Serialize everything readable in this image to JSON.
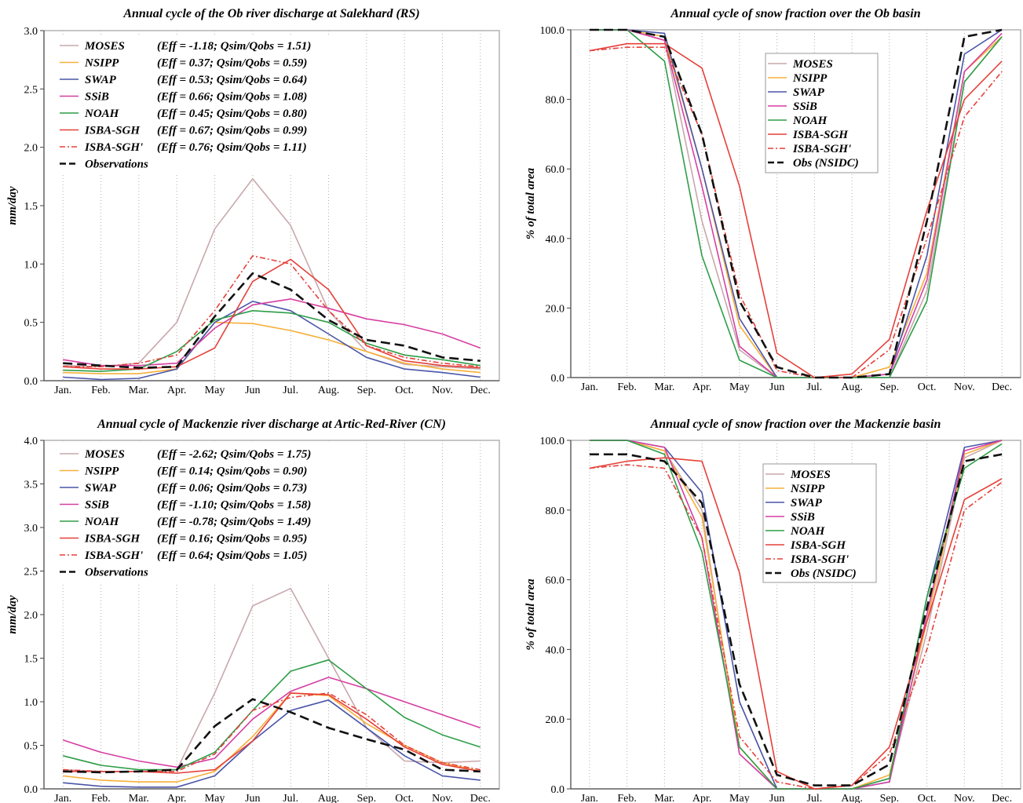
{
  "months": [
    "Jan.",
    "Feb.",
    "Mar.",
    "Apr.",
    "May",
    "Jun",
    "Jul.",
    "Aug.",
    "Sep.",
    "Oct.",
    "Nov.",
    "Dec."
  ],
  "series_styles": {
    "MOSES": {
      "color": "#c8a8ac",
      "dash": ""
    },
    "NSIPP": {
      "color": "#f6b03a",
      "dash": ""
    },
    "SWAP": {
      "color": "#4a55a8",
      "dash": ""
    },
    "SSiB": {
      "color": "#d63fa3",
      "dash": ""
    },
    "NOAH": {
      "color": "#2e9e48",
      "dash": ""
    },
    "ISBA-SGH": {
      "color": "#e6403a",
      "dash": ""
    },
    "ISBA-SGH'": {
      "color": "#e6403a",
      "dash": "7 3 2 3"
    },
    "Observations": {
      "color": "#111111",
      "dash": "12 6"
    },
    "Obs (NSIDC)": {
      "color": "#111111",
      "dash": "12 6"
    }
  },
  "chart_data": [
    {
      "type": "line",
      "title": "Annual cycle of the Ob river discharge at Salekhard (RS)",
      "ylabel": "mm/day",
      "xlabel": "",
      "ylim": [
        0,
        3.0
      ],
      "yticks": [
        "0.0",
        "0.5",
        "1.0",
        "1.5",
        "2.0",
        "2.5",
        "3.0"
      ],
      "grid": "vertical dotted",
      "legend_position": "top-left",
      "categories": [
        "Jan.",
        "Feb.",
        "Mar.",
        "Apr.",
        "May",
        "Jun",
        "Jul.",
        "Aug.",
        "Sep.",
        "Oct.",
        "Nov.",
        "Dec."
      ],
      "series": [
        {
          "name": "MOSES",
          "stat": "(Eff = -1.18; Qsim/Qobs = 1.51)",
          "values": [
            0.13,
            0.12,
            0.15,
            0.5,
            1.3,
            1.73,
            1.33,
            0.6,
            0.25,
            0.14,
            0.12,
            0.1
          ]
        },
        {
          "name": "NSIPP",
          "stat": "(Eff = 0.37; Qsim/Qobs = 0.59)",
          "values": [
            0.07,
            0.06,
            0.06,
            0.1,
            0.5,
            0.49,
            0.43,
            0.35,
            0.25,
            0.15,
            0.1,
            0.07
          ]
        },
        {
          "name": "SWAP",
          "stat": "(Eff = 0.53; Qsim/Qobs = 0.64)",
          "values": [
            0.03,
            0.01,
            0.02,
            0.1,
            0.5,
            0.68,
            0.6,
            0.4,
            0.2,
            0.1,
            0.07,
            0.03
          ]
        },
        {
          "name": "SSiB",
          "stat": "(Eff = 0.66; Qsim/Qobs = 1.08)",
          "values": [
            0.18,
            0.13,
            0.13,
            0.15,
            0.45,
            0.65,
            0.7,
            0.62,
            0.53,
            0.48,
            0.4,
            0.28
          ]
        },
        {
          "name": "NOAH",
          "stat": "(Eff = 0.45; Qsim/Qobs = 0.80)",
          "values": [
            0.09,
            0.08,
            0.1,
            0.25,
            0.52,
            0.6,
            0.58,
            0.5,
            0.32,
            0.22,
            0.18,
            0.13
          ]
        },
        {
          "name": "ISBA-SGH",
          "stat": "(Eff = 0.67; Qsim/Qobs = 0.99)",
          "values": [
            0.12,
            0.1,
            0.1,
            0.12,
            0.28,
            0.85,
            1.04,
            0.78,
            0.3,
            0.17,
            0.13,
            0.11
          ]
        },
        {
          "name": "ISBA-SGH'",
          "stat": "(Eff = 0.76; Qsim/Qobs = 1.11)",
          "values": [
            0.12,
            0.12,
            0.15,
            0.22,
            0.6,
            1.07,
            1.0,
            0.6,
            0.3,
            0.2,
            0.15,
            0.12
          ]
        },
        {
          "name": "Observations",
          "stat": "",
          "values": [
            0.15,
            0.13,
            0.11,
            0.12,
            0.55,
            0.92,
            0.78,
            0.52,
            0.35,
            0.3,
            0.2,
            0.17
          ]
        }
      ]
    },
    {
      "type": "line",
      "title": "Annual cycle of snow fraction over the Ob basin",
      "ylabel": "% of total area",
      "xlabel": "",
      "ylim": [
        0,
        100
      ],
      "yticks": [
        "0.0",
        "20.0",
        "40.0",
        "60.0",
        "80.0",
        "100.0"
      ],
      "grid": "vertical dotted",
      "legend_position": "upper-center",
      "categories": [
        "Jan.",
        "Feb.",
        "Mar.",
        "Apr.",
        "May",
        "Jun",
        "Jul.",
        "Aug.",
        "Sep.",
        "Oct.",
        "Nov.",
        "Dec."
      ],
      "series": [
        {
          "name": "MOSES",
          "stat": "",
          "values": [
            100,
            100,
            97,
            45,
            8,
            0,
            0,
            0,
            0,
            25,
            85,
            98
          ]
        },
        {
          "name": "NSIPP",
          "stat": "",
          "values": [
            100,
            100,
            98,
            60,
            15,
            0,
            0,
            0,
            3,
            30,
            88,
            98
          ]
        },
        {
          "name": "SWAP",
          "stat": "",
          "values": [
            100,
            100,
            99,
            60,
            17,
            0,
            0,
            0,
            1,
            35,
            93,
            100
          ]
        },
        {
          "name": "SSiB",
          "stat": "",
          "values": [
            100,
            100,
            97,
            55,
            9,
            0,
            0,
            0,
            1,
            28,
            88,
            99
          ]
        },
        {
          "name": "NOAH",
          "stat": "",
          "values": [
            100,
            100,
            91,
            35,
            5,
            0,
            0,
            0,
            0,
            22,
            85,
            98
          ]
        },
        {
          "name": "ISBA-SGH",
          "stat": "",
          "values": [
            94,
            96,
            96,
            89,
            55,
            7,
            0,
            1,
            11,
            48,
            80,
            91
          ]
        },
        {
          "name": "ISBA-SGH'",
          "stat": "",
          "values": [
            94,
            95,
            95,
            70,
            24,
            2,
            0,
            0,
            8,
            40,
            75,
            88
          ]
        },
        {
          "name": "Obs (NSIDC)",
          "stat": "",
          "values": [
            100,
            100,
            98,
            70,
            22,
            3,
            0,
            0,
            1,
            45,
            98,
            100
          ]
        }
      ]
    },
    {
      "type": "line",
      "title": "Annual cycle of Mackenzie river discharge at Artic-Red-River (CN)",
      "ylabel": "mm/day",
      "xlabel": "",
      "ylim": [
        0,
        4.0
      ],
      "yticks": [
        "0.0",
        "0.5",
        "1.0",
        "1.5",
        "2.0",
        "2.5",
        "3.0",
        "3.5",
        "4.0"
      ],
      "grid": "vertical dotted",
      "legend_position": "top-left",
      "categories": [
        "Jan.",
        "Feb.",
        "Mar.",
        "Apr.",
        "May",
        "Jun",
        "Jul.",
        "Aug.",
        "Sep.",
        "Oct.",
        "Nov.",
        "Dec."
      ],
      "series": [
        {
          "name": "MOSES",
          "stat": "(Eff = -2.62; Qsim/Qobs = 1.75)",
          "values": [
            0.22,
            0.2,
            0.2,
            0.22,
            1.1,
            2.1,
            2.3,
            1.5,
            0.7,
            0.32,
            0.3,
            0.32
          ]
        },
        {
          "name": "NSIPP",
          "stat": "(Eff = 0.14; Qsim/Qobs = 0.90)",
          "values": [
            0.15,
            0.1,
            0.08,
            0.08,
            0.2,
            0.6,
            1.1,
            1.07,
            0.75,
            0.5,
            0.3,
            0.2
          ]
        },
        {
          "name": "SWAP",
          "stat": "(Eff = 0.06; Qsim/Qobs = 0.73)",
          "values": [
            0.07,
            0.03,
            0.02,
            0.02,
            0.15,
            0.55,
            0.9,
            1.02,
            0.7,
            0.38,
            0.15,
            0.1
          ]
        },
        {
          "name": "SSiB",
          "stat": "(Eff = -1.10; Qsim/Qobs = 1.58)",
          "values": [
            0.56,
            0.42,
            0.32,
            0.25,
            0.35,
            0.8,
            1.12,
            1.28,
            1.15,
            1.0,
            0.85,
            0.7
          ]
        },
        {
          "name": "NOAH",
          "stat": "(Eff = -0.78; Qsim/Qobs = 1.49)",
          "values": [
            0.38,
            0.27,
            0.22,
            0.22,
            0.42,
            0.9,
            1.35,
            1.48,
            1.15,
            0.82,
            0.62,
            0.48
          ]
        },
        {
          "name": "ISBA-SGH",
          "stat": "(Eff = 0.16; Qsim/Qobs = 0.95)",
          "values": [
            0.2,
            0.2,
            0.2,
            0.18,
            0.22,
            0.55,
            1.1,
            1.08,
            0.8,
            0.48,
            0.28,
            0.2
          ]
        },
        {
          "name": "ISBA-SGH'",
          "stat": "(Eff = 0.64; Qsim/Qobs = 1.05)",
          "values": [
            0.22,
            0.2,
            0.2,
            0.2,
            0.4,
            0.9,
            1.05,
            1.1,
            0.85,
            0.5,
            0.3,
            0.22
          ]
        },
        {
          "name": "Observations",
          "stat": "",
          "values": [
            0.2,
            0.19,
            0.2,
            0.22,
            0.72,
            1.03,
            0.88,
            0.7,
            0.57,
            0.45,
            0.22,
            0.2
          ]
        }
      ]
    },
    {
      "type": "line",
      "title": "Annual cycle of snow fraction over the Mackenzie basin",
      "ylabel": "% of total area",
      "xlabel": "",
      "ylim": [
        0,
        100
      ],
      "yticks": [
        "0.0",
        "20.0",
        "40.0",
        "60.0",
        "80.0",
        "100.0"
      ],
      "grid": "vertical dotted",
      "legend_position": "upper-center",
      "categories": [
        "Jan.",
        "Feb.",
        "Mar.",
        "Apr.",
        "May",
        "Jun",
        "Jul.",
        "Aug.",
        "Sep.",
        "Oct.",
        "Nov.",
        "Dec."
      ],
      "series": [
        {
          "name": "MOSES",
          "stat": "",
          "values": [
            100,
            100,
            97,
            80,
            10,
            0,
            0,
            0,
            3,
            45,
            95,
            100
          ]
        },
        {
          "name": "NSIPP",
          "stat": "",
          "values": [
            100,
            100,
            97,
            78,
            12,
            0,
            0,
            0,
            4,
            48,
            96,
            100
          ]
        },
        {
          "name": "SWAP",
          "stat": "",
          "values": [
            100,
            100,
            98,
            85,
            25,
            0,
            0,
            0,
            2,
            55,
            98,
            100
          ]
        },
        {
          "name": "SSiB",
          "stat": "",
          "values": [
            100,
            100,
            98,
            72,
            10,
            0,
            0,
            0,
            2,
            50,
            97,
            100
          ]
        },
        {
          "name": "NOAH",
          "stat": "",
          "values": [
            100,
            100,
            96,
            68,
            12,
            0,
            0,
            0,
            3,
            55,
            92,
            99
          ]
        },
        {
          "name": "ISBA-SGH",
          "stat": "",
          "values": [
            92,
            94,
            95,
            94,
            62,
            5,
            0,
            1,
            12,
            48,
            83,
            89
          ]
        },
        {
          "name": "ISBA-SGH'",
          "stat": "",
          "values": [
            92,
            93,
            92,
            72,
            15,
            2,
            0,
            1,
            10,
            40,
            80,
            88
          ]
        },
        {
          "name": "Obs (NSIDC)",
          "stat": "",
          "values": [
            96,
            96,
            94,
            82,
            30,
            4,
            1,
            1,
            7,
            52,
            94,
            96
          ]
        }
      ]
    }
  ]
}
